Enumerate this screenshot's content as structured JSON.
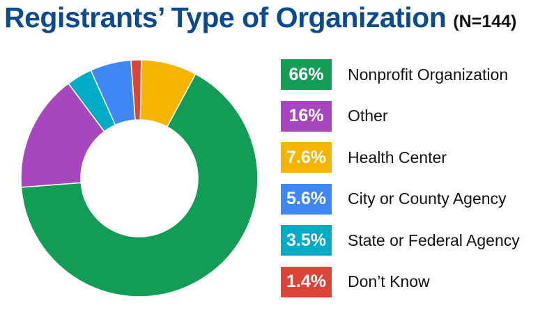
{
  "title": "Registrants’ Type of Organization",
  "subtitle": "(N=144)",
  "chart_data": {
    "type": "pie",
    "variant": "donut",
    "title": "Registrants’ Type of Organization",
    "subtitle": "(N=144)",
    "legend_position": "right",
    "slices": [
      {
        "label": "Nonprofit Organization",
        "display": "66%",
        "value": 66,
        "color": "#139c55"
      },
      {
        "label": "Other",
        "display": "16%",
        "value": 16,
        "color": "#a647bd"
      },
      {
        "label": "State or Federal Agency",
        "display": "3.5%",
        "value": 3.5,
        "color": "#00abc6"
      },
      {
        "label": "City or County Agency",
        "display": "5.6%",
        "value": 5.6,
        "color": "#3f87f5"
      },
      {
        "label": "Don’t Know",
        "display": "1.4%",
        "value": 1.4,
        "color": "#db4437"
      },
      {
        "label": "Health Center",
        "display": "7.6%",
        "value": 7.6,
        "color": "#f5b400"
      }
    ],
    "legend": [
      {
        "display": "66%",
        "label": "Nonprofit Organization",
        "color": "#139c55"
      },
      {
        "display": "16%",
        "label": "Other",
        "color": "#a647bd"
      },
      {
        "display": "7.6%",
        "label": "Health Center",
        "color": "#f5b400"
      },
      {
        "display": "5.6%",
        "label": "City or County Agency",
        "color": "#3f87f5"
      },
      {
        "display": "3.5%",
        "label": "State or Federal Agency",
        "color": "#00abc6"
      },
      {
        "display": "1.4%",
        "label": "Don’t Know",
        "color": "#db4437"
      }
    ]
  }
}
